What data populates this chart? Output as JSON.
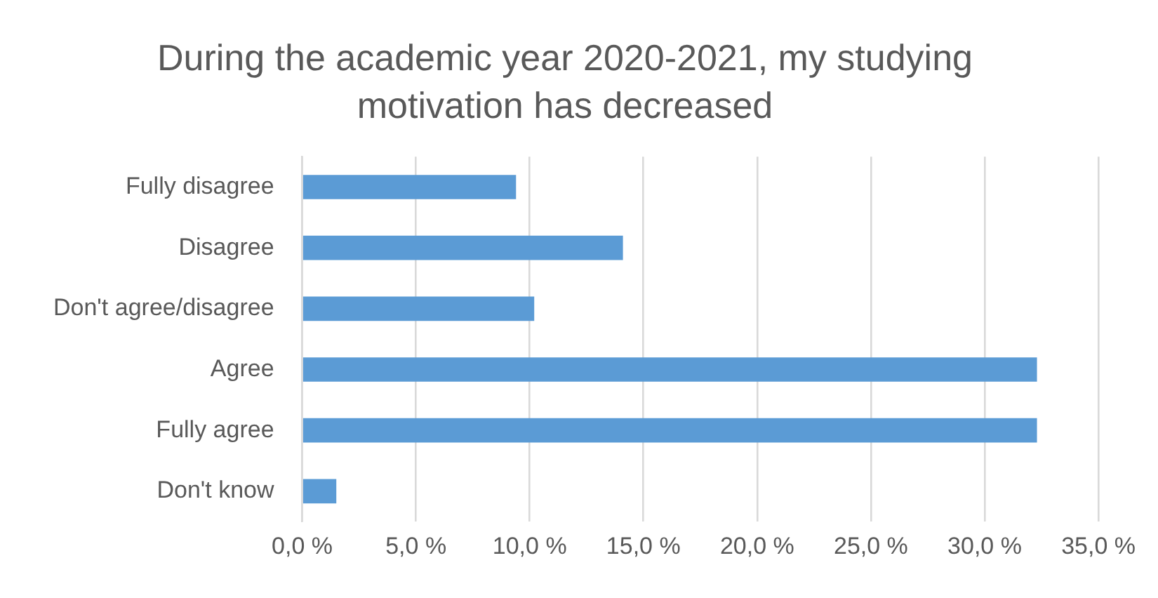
{
  "chart_data": {
    "type": "bar",
    "orientation": "horizontal",
    "title": "During the academic year 2020-2021, my studying motivation has decreased",
    "categories": [
      "Fully disagree",
      "Disagree",
      "Don't agree/disagree",
      "Agree",
      "Fully agree",
      "Don't know"
    ],
    "values": [
      9.4,
      14.1,
      10.2,
      32.3,
      32.3,
      1.5
    ],
    "color": "#5b9bd5",
    "xlim": [
      0,
      35
    ],
    "xticks": [
      {
        "value": 0,
        "label": "0,0 %"
      },
      {
        "value": 5,
        "label": "5,0 %"
      },
      {
        "value": 10,
        "label": "10,0 %"
      },
      {
        "value": 15,
        "label": "15,0 %"
      },
      {
        "value": 20,
        "label": "20,0 %"
      },
      {
        "value": 25,
        "label": "25,0 %"
      },
      {
        "value": 30,
        "label": "30,0 %"
      },
      {
        "value": 35,
        "label": "35,0 %"
      }
    ],
    "grid": "x",
    "legend": false
  }
}
